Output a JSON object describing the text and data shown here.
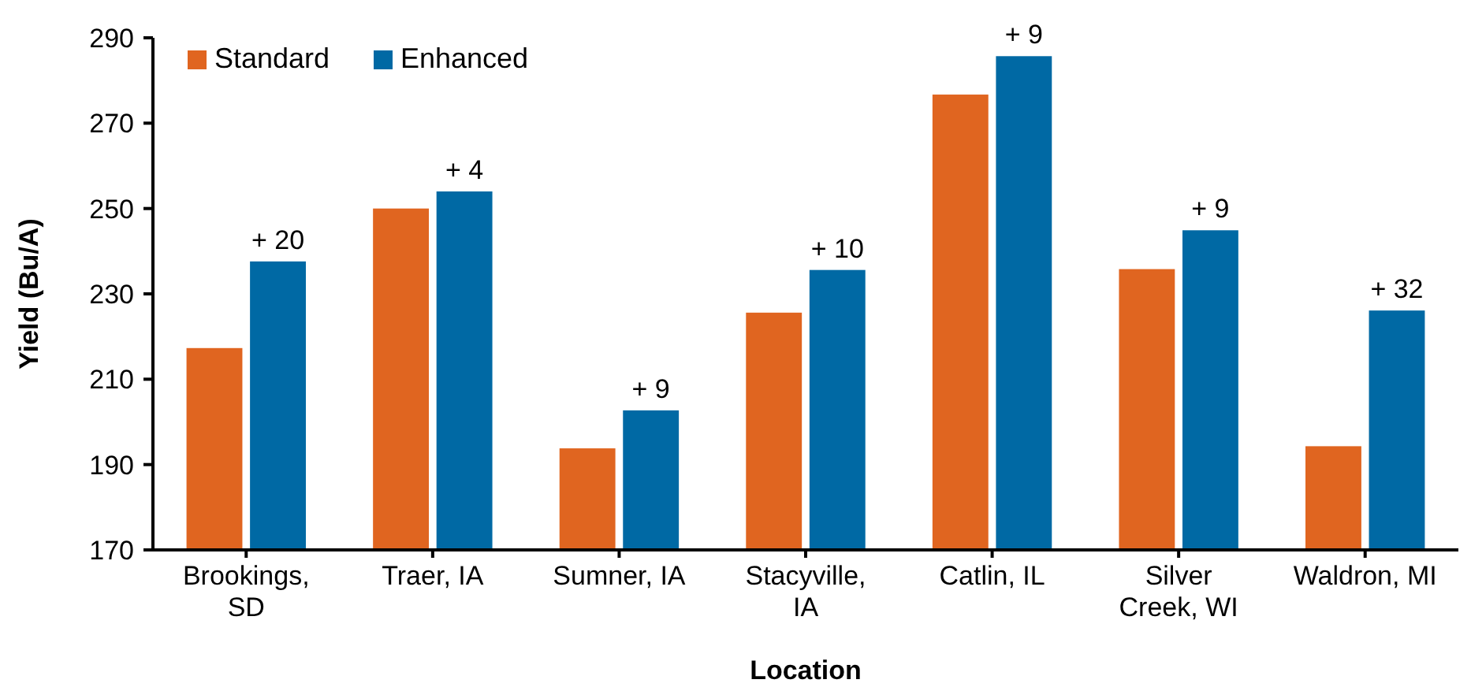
{
  "chart_data": {
    "type": "bar",
    "xlabel": "Location",
    "ylabel": "Yield (Bu/A)",
    "categories": [
      "Brookings,\nSD",
      "Traer, IA",
      "Sumner, IA",
      "Stacyville,\nIA",
      "Catlin, IL",
      "Silver\nCreek, WI",
      "Waldron, MI"
    ],
    "series": [
      {
        "name": "Standard",
        "color": "#e06520",
        "values": [
          217.3,
          250,
          193.8,
          225.6,
          276.7,
          235.8,
          194.3
        ]
      },
      {
        "name": "Enhanced",
        "color": "#0069a4",
        "values": [
          237.6,
          254,
          202.7,
          235.6,
          285.7,
          244.9,
          226.1
        ]
      }
    ],
    "ylim": [
      170,
      290
    ],
    "yticks": [
      170,
      190,
      210,
      230,
      250,
      270,
      290
    ],
    "grid": false,
    "legend": "top left",
    "annotations": [
      {
        "text": "+ 20",
        "x": "Brookings,\nSD",
        "y": 237.6
      },
      {
        "text": "+ 4",
        "x": "Traer, IA",
        "y": 254
      },
      {
        "text": "+ 9",
        "x": "Sumner, IA",
        "y": 202.7
      },
      {
        "text": "+ 10",
        "x": "Stacyville,\nIA",
        "y": 235.6
      },
      {
        "text": "+ 9",
        "x": "Catlin, IL",
        "y": 285.7
      },
      {
        "text": "+ 9",
        "x": "Silver\nCreek, WI",
        "y": 244.9
      },
      {
        "text": "+ 32",
        "x": "Waldron, MI",
        "y": 226.1
      }
    ]
  }
}
